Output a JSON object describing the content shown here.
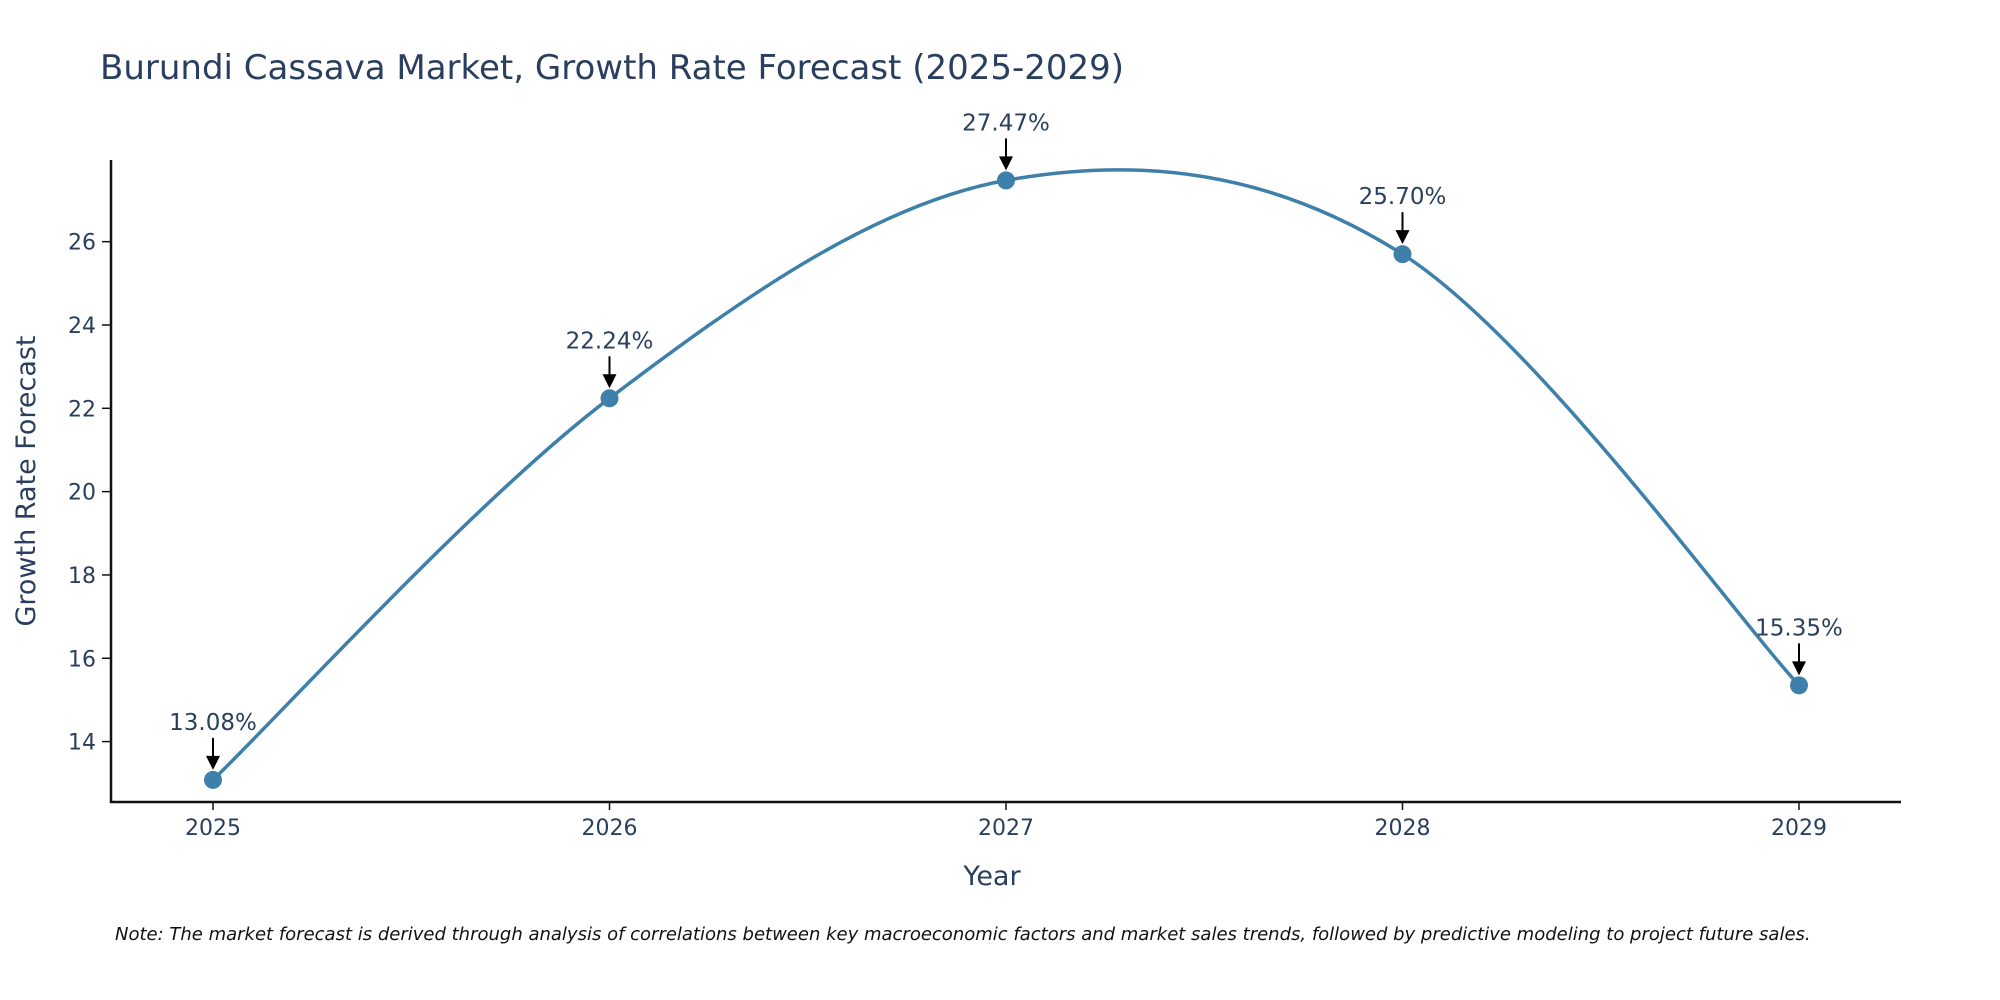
{
  "chart_data": {
    "type": "line",
    "title": "Burundi Cassava Market, Growth Rate Forecast (2025-2029)",
    "xlabel": "Year",
    "ylabel": "Growth Rate Forecast",
    "categories": [
      "2025",
      "2026",
      "2027",
      "2028",
      "2029"
    ],
    "series": [
      {
        "name": "Growth Rate Forecast",
        "values": [
          13.08,
          22.24,
          27.47,
          25.7,
          15.35
        ],
        "labels": [
          "13.08%",
          "22.24%",
          "27.47%",
          "25.70%",
          "15.35%"
        ]
      }
    ],
    "yticks": [
      14,
      16,
      18,
      20,
      22,
      24,
      26
    ],
    "ylim": [
      12.55,
      27.96
    ],
    "grid": false,
    "line_shape": "spline",
    "line_color": "#3f80aa",
    "marker_color": "#3f80aa",
    "arrow_color": "#000000",
    "note": "Note: The market forecast is derived through analysis of correlations between key macroeconomic factors and market sales trends, followed by predictive modeling to project future sales."
  }
}
